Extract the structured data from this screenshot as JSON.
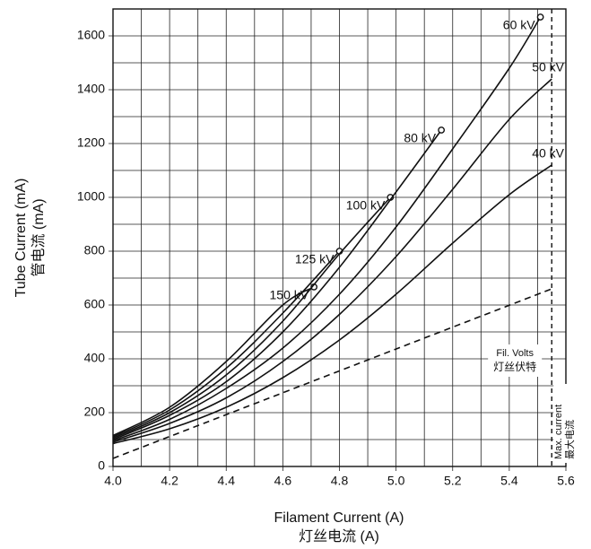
{
  "chart_data": {
    "type": "line",
    "xlabel": "Filament Current (A)",
    "xlabel_cn": "灯丝电流 (A)",
    "ylabel": "Tube Current (mA)",
    "ylabel_cn": "管电流 (mA)",
    "xlim": [
      4.0,
      5.6
    ],
    "ylim": [
      0,
      1700
    ],
    "xticks": [
      {
        "value": 4.0,
        "label": "4.0"
      },
      4.2,
      4.4,
      4.6,
      4.8,
      {
        "value": 5.0,
        "label": "5.0"
      },
      5.2,
      5.4,
      5.6
    ],
    "yticks": [
      0,
      200,
      400,
      600,
      800,
      1000,
      1200,
      1400,
      1600
    ],
    "xminorticks": [
      4.1,
      4.3,
      4.5,
      4.7,
      4.9,
      5.1,
      5.3,
      5.5
    ],
    "yminorticks": [
      100,
      300,
      500,
      700,
      900,
      1100,
      1300,
      1500
    ],
    "grid": true,
    "series": [
      {
        "name": "150 kV",
        "color": "#111111",
        "end_marker": true,
        "x": [
          4.0,
          4.2,
          4.4,
          4.6,
          4.71
        ],
        "values": [
          115,
          220,
          390,
          600,
          667
        ]
      },
      {
        "name": "125 kV",
        "color": "#111111",
        "end_marker": true,
        "x": [
          4.0,
          4.2,
          4.4,
          4.6,
          4.8
        ],
        "values": [
          110,
          210,
          365,
          570,
          800
        ]
      },
      {
        "name": "100 kV",
        "color": "#111111",
        "end_marker": true,
        "x": [
          4.0,
          4.2,
          4.4,
          4.6,
          4.8,
          4.98
        ],
        "values": [
          105,
          200,
          340,
          540,
          790,
          1000
        ]
      },
      {
        "name": "80 kV",
        "color": "#111111",
        "end_marker": true,
        "x": [
          4.0,
          4.2,
          4.4,
          4.6,
          4.8,
          5.0,
          5.16
        ],
        "values": [
          100,
          190,
          315,
          500,
          740,
          1020,
          1250
        ]
      },
      {
        "name": "60 kV",
        "color": "#111111",
        "end_marker": true,
        "x": [
          4.0,
          4.2,
          4.4,
          4.6,
          4.8,
          5.0,
          5.2,
          5.4,
          5.51
        ],
        "values": [
          95,
          175,
          290,
          440,
          640,
          890,
          1180,
          1480,
          1670
        ]
      },
      {
        "name": "50 kV",
        "color": "#111111",
        "end_marker": false,
        "x": [
          4.0,
          4.2,
          4.4,
          4.6,
          4.8,
          5.0,
          5.2,
          5.4,
          5.55
        ],
        "values": [
          90,
          160,
          255,
          390,
          565,
          780,
          1030,
          1290,
          1440
        ]
      },
      {
        "name": "40 kV",
        "color": "#111111",
        "end_marker": false,
        "x": [
          4.0,
          4.2,
          4.4,
          4.6,
          4.8,
          5.0,
          5.2,
          5.4,
          5.55
        ],
        "values": [
          85,
          140,
          220,
          330,
          470,
          640,
          830,
          1010,
          1120
        ]
      },
      {
        "name": "Fil. Volts",
        "name_cn": "灯丝伏特",
        "color": "#111111",
        "dashed": true,
        "end_marker": false,
        "x": [
          4.0,
          5.55
        ],
        "values": [
          30,
          660
        ]
      }
    ],
    "vline": {
      "x": 5.55,
      "label": "Max. current",
      "label_cn": "最大电流",
      "dashed": true
    }
  }
}
